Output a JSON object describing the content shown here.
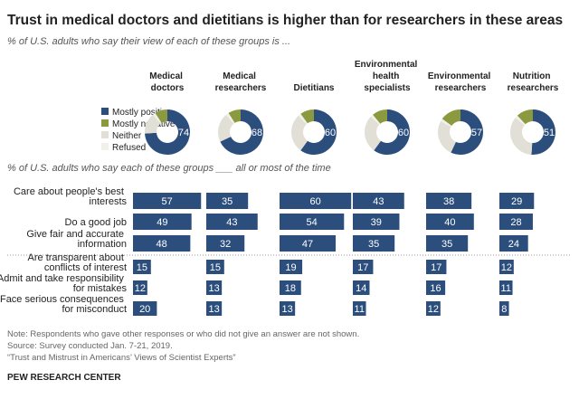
{
  "title": "Trust in medical doctors and dietitians is higher than for researchers in these areas",
  "note": "Note: Respondents who gave other responses or who did not give an answer are not shown.",
  "source": "Source: Survey conducted Jan. 7-21, 2019.",
  "report": "“Trust and Mistrust in Americans’ Views of Scientist Experts”",
  "footer": "PEW RESEARCH CENTER",
  "chart_data": [
    {
      "type": "donut",
      "subtitle": "% of U.S. adults who say their view of each of these groups is ...",
      "categories": [
        "Medical doctors",
        "Medical researchers",
        "Dietitians",
        "Environmental health specialists",
        "Environmental researchers",
        "Nutrition researchers"
      ],
      "legend": "left",
      "series": [
        {
          "name": "Mostly positive",
          "color": "#2b4e7d",
          "values": [
            74,
            68,
            60,
            60,
            57,
            51
          ]
        },
        {
          "name": "Mostly negative",
          "color": "#8b9a3e",
          "values": [
            9,
            9,
            10,
            11,
            15,
            12
          ]
        },
        {
          "name": "Neither",
          "color": "#e2dfd7",
          "values": [
            15,
            21,
            28,
            27,
            26,
            35
          ]
        },
        {
          "name": "Refused",
          "color": "#f2f0eb",
          "values": [
            2,
            2,
            2,
            2,
            2,
            2
          ]
        }
      ]
    },
    {
      "type": "bar",
      "subtitle": "% of U.S. adults who say each of these groups ___ all or most of the time",
      "color": "#2b4e7d",
      "categories": [
        "Care about people's best interests",
        "Do a good job",
        "Give fair and accurate information",
        "Are transparent about conflicts of interest",
        "Admit and take responsibility for mistakes",
        "Face serious consequences for misconduct"
      ],
      "series": [
        {
          "name": "Medical doctors",
          "values": [
            57,
            49,
            48,
            15,
            12,
            20
          ]
        },
        {
          "name": "Medical researchers",
          "values": [
            35,
            43,
            32,
            15,
            13,
            13
          ]
        },
        {
          "name": "Dietitians",
          "values": [
            60,
            54,
            47,
            19,
            18,
            13
          ]
        },
        {
          "name": "Environmental health specialists",
          "values": [
            43,
            39,
            35,
            17,
            14,
            11
          ]
        },
        {
          "name": "Environmental researchers",
          "values": [
            38,
            40,
            35,
            17,
            16,
            12
          ]
        },
        {
          "name": "Nutrition researchers",
          "values": [
            29,
            28,
            24,
            12,
            11,
            8
          ]
        }
      ]
    }
  ]
}
